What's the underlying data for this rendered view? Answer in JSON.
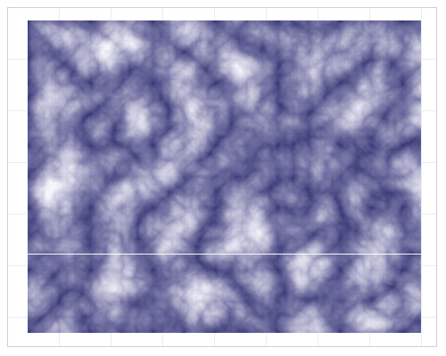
{
  "colors": {
    "page_background": "#ffffff",
    "frame_border": "#cfcfd8",
    "grid_line": "#ececf2",
    "texture_dark": "#2e2e6e",
    "texture_mid": "#7a79a8",
    "texture_light": "#f4f4fb",
    "scan_line": "#ffffff"
  },
  "texture": {
    "type": "fractal-noise-clouds",
    "seed": 17
  },
  "scan_line": {
    "visible": true
  }
}
